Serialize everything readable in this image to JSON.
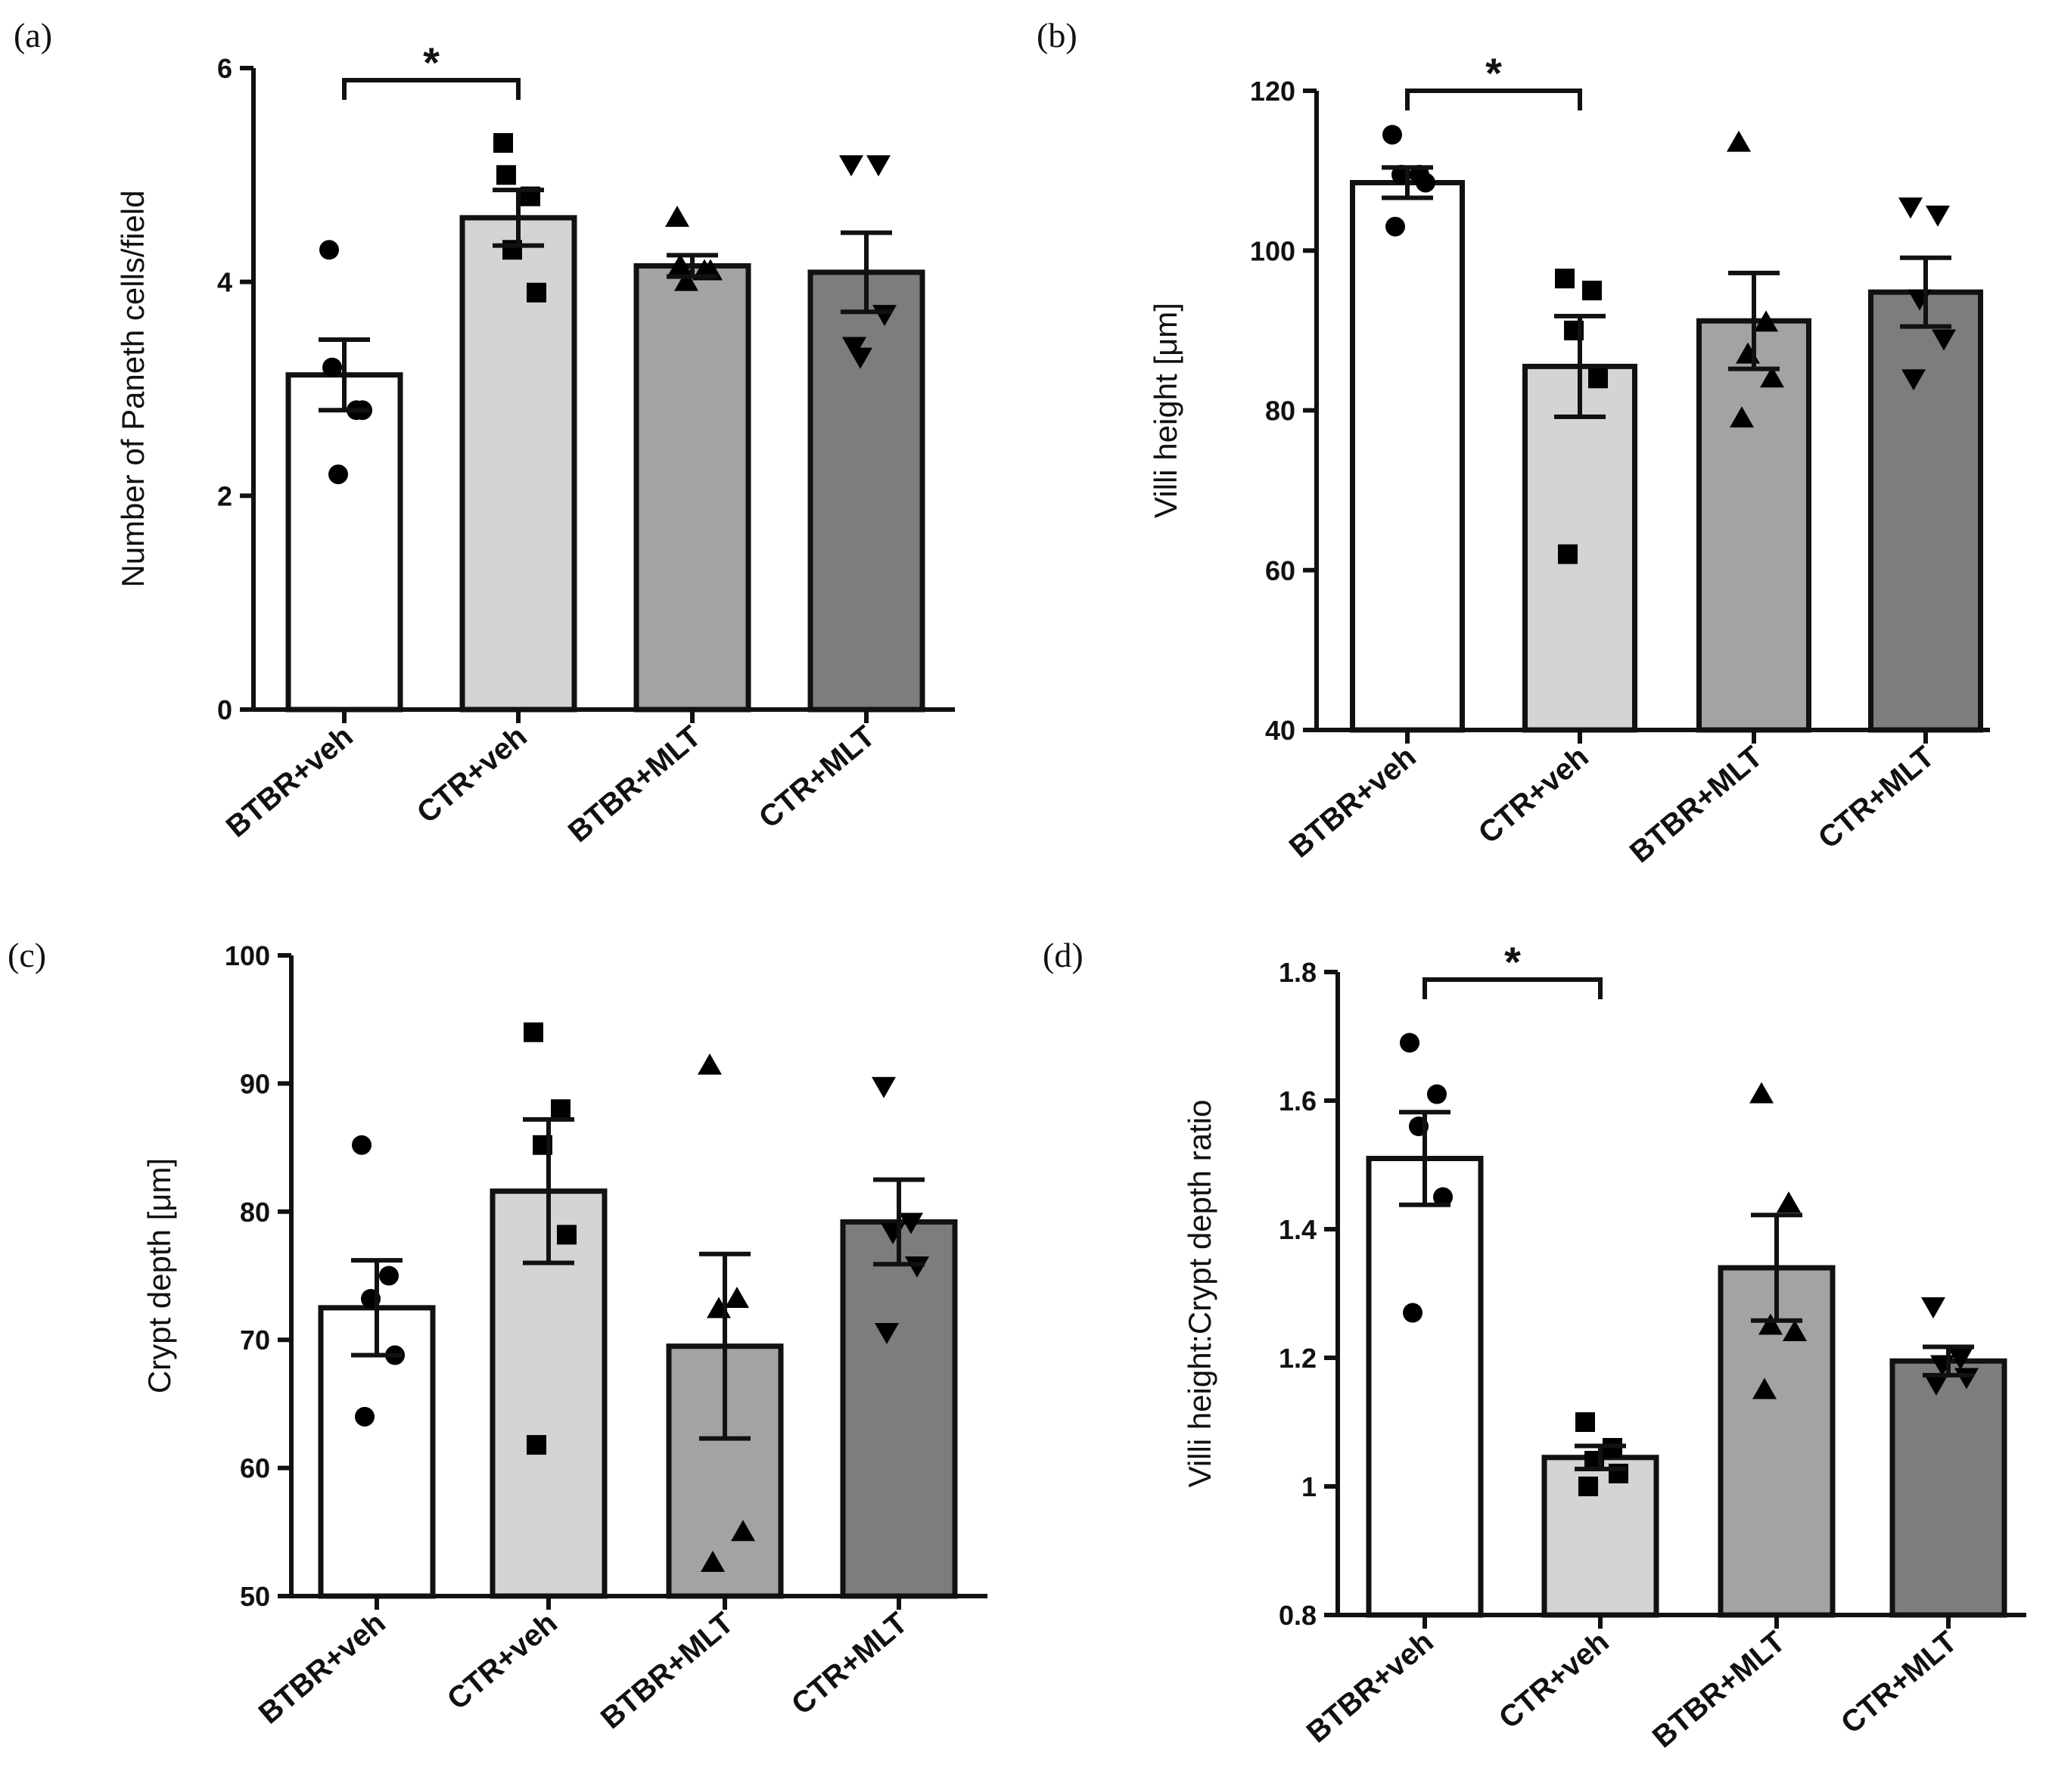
{
  "chart_data": [
    {
      "panel": "(a)",
      "type": "bar",
      "ylabel": "Number of Paneth cells/field",
      "ylim": [
        0,
        6
      ],
      "yticks": [
        0,
        2,
        4,
        6
      ],
      "categories": [
        "BTBR+veh",
        "CTR+veh",
        "BTBR+MLT",
        "CTR+MLT"
      ],
      "values": [
        3.13,
        4.6,
        4.15,
        4.09
      ],
      "sem": [
        0.33,
        0.26,
        0.1,
        0.37
      ],
      "points": [
        [
          4.3,
          2.8,
          2.2,
          2.8,
          3.2
        ],
        [
          5.3,
          4.8,
          4.3,
          3.9,
          5.0
        ],
        [
          4.6,
          4.1,
          4.0,
          4.1,
          4.15
        ],
        [
          5.1,
          5.1,
          3.3,
          3.7,
          3.4
        ]
      ],
      "bar_colors": [
        "#ffffff",
        "#d4d4d4",
        "#a3a3a6",
        "#7d7d7d"
      ],
      "markers": [
        "circle",
        "square",
        "triangle-up",
        "triangle-down"
      ],
      "significance": [
        {
          "from": 0,
          "to": 1,
          "label": "*"
        }
      ]
    },
    {
      "panel": "(b)",
      "type": "bar",
      "ylabel": "Villi height [μm]",
      "ylim": [
        40,
        120
      ],
      "yticks": [
        40,
        60,
        80,
        100,
        120
      ],
      "categories": [
        "BTBR+veh",
        "CTR+veh",
        "BTBR+MLT",
        "CTR+MLT"
      ],
      "values": [
        108.5,
        85.5,
        91.2,
        94.8
      ],
      "sem": [
        1.9,
        6.3,
        6.0,
        4.3
      ],
      "points": [
        [
          114.5,
          109.5,
          109.5,
          108.5,
          103
        ],
        [
          96.5,
          95,
          90,
          84,
          62
        ],
        [
          113.5,
          91,
          87,
          84,
          79
        ],
        [
          105.5,
          104.5,
          94,
          89,
          84
        ]
      ],
      "bar_colors": [
        "#ffffff",
        "#d4d4d4",
        "#a3a3a6",
        "#7d7d7d"
      ],
      "markers": [
        "circle",
        "square",
        "triangle-up",
        "triangle-down"
      ],
      "significance": [
        {
          "from": 0,
          "to": 1,
          "label": "*"
        }
      ]
    },
    {
      "panel": "(c)",
      "type": "bar",
      "ylabel": "Crypt depth [μm]",
      "ylim": [
        50,
        100
      ],
      "yticks": [
        50,
        60,
        70,
        80,
        90,
        100
      ],
      "categories": [
        "BTBR+veh",
        "CTR+veh",
        "BTBR+MLT",
        "CTR+MLT"
      ],
      "values": [
        72.5,
        81.6,
        69.5,
        79.2
      ],
      "sem": [
        3.7,
        5.6,
        7.2,
        3.3
      ],
      "points": [
        [
          85.2,
          75,
          73.2,
          68.8,
          64
        ],
        [
          94,
          88,
          85.2,
          78.2,
          61.8
        ],
        [
          91.4,
          73.2,
          72.4,
          55,
          52.6
        ],
        [
          89.8,
          79.2,
          78.4,
          75.8,
          70.6
        ]
      ],
      "bar_colors": [
        "#ffffff",
        "#d4d4d4",
        "#a3a3a6",
        "#7d7d7d"
      ],
      "markers": [
        "circle",
        "square",
        "triangle-up",
        "triangle-down"
      ],
      "significance": []
    },
    {
      "panel": "(d)",
      "type": "bar",
      "ylabel": "Villi height:Crypt depth ratio",
      "ylim": [
        0.8,
        1.8
      ],
      "yticks": [
        0.8,
        1.0,
        1.2,
        1.4,
        1.6,
        1.8
      ],
      "categories": [
        "BTBR+veh",
        "CTR+veh",
        "BTBR+MLT",
        "CTR+MLT"
      ],
      "values": [
        1.51,
        1.045,
        1.34,
        1.195
      ],
      "sem": [
        0.072,
        0.018,
        0.082,
        0.022
      ],
      "points": [
        [
          1.69,
          1.61,
          1.56,
          1.45,
          1.27
        ],
        [
          1.1,
          1.06,
          1.04,
          1.02,
          1.0
        ],
        [
          1.61,
          1.44,
          1.25,
          1.24,
          1.15
        ],
        [
          1.28,
          1.2,
          1.19,
          1.17,
          1.16
        ]
      ],
      "bar_colors": [
        "#ffffff",
        "#d4d4d4",
        "#a3a3a6",
        "#7d7d7d"
      ],
      "markers": [
        "circle",
        "square",
        "triangle-up",
        "triangle-down"
      ],
      "significance": [
        {
          "from": 0,
          "to": 1,
          "label": "*"
        }
      ]
    }
  ]
}
